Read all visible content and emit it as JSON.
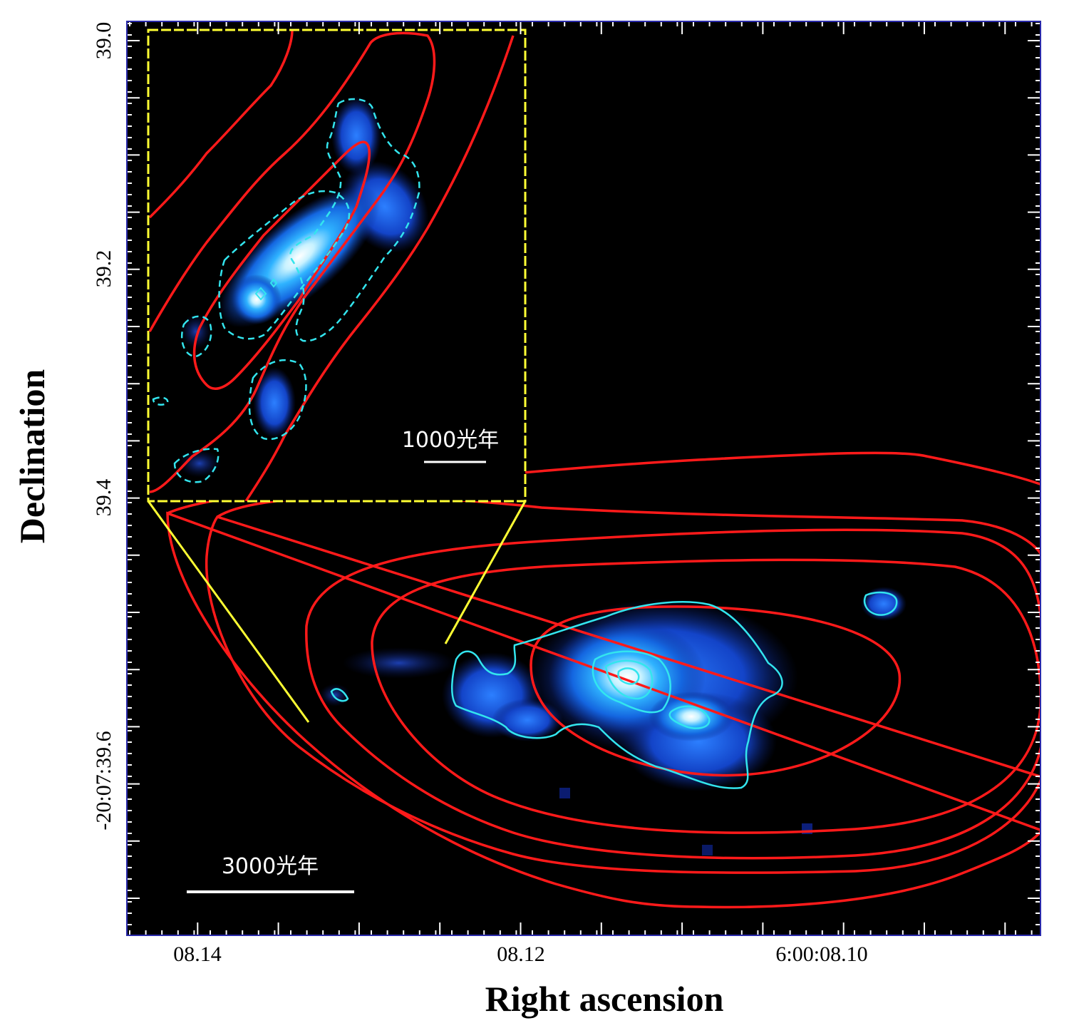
{
  "axes": {
    "x_title": "Right ascension",
    "y_title": "Declination",
    "x_tick_labels": [
      "08.14",
      "08.12",
      "6:00:08.10"
    ],
    "y_tick_labels": [
      "39.0",
      "39.2",
      "39.4",
      "-20:07:39.6"
    ]
  },
  "scale_bars": {
    "main_label": "3000光年",
    "inset_label": "1000光年"
  },
  "colors": {
    "background": "#000000",
    "red_contour": "#ff1a1a",
    "cyan_contour": "#33e5ee",
    "inset_frame": "#ffff33",
    "frame_border": "#2a2aaa"
  }
}
